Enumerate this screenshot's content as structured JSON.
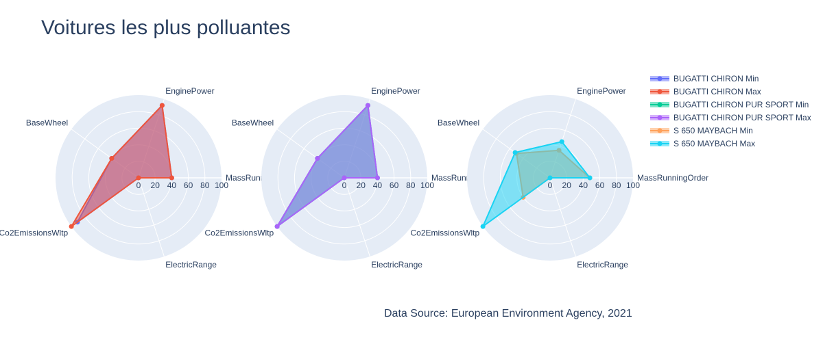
{
  "title": "Voitures les plus polluantes",
  "source_note": "Data Source: European Environment Agency, 2021",
  "chart_data": {
    "type": "radar",
    "axes": [
      "MassRunningOrder",
      "EnginePower",
      "BaseWheel",
      "Co2EmissionsWltp",
      "ElectricRange"
    ],
    "radial_range": [
      0,
      100
    ],
    "radial_ticks": [
      0,
      20,
      40,
      60,
      80,
      100
    ],
    "grid": true,
    "legend_position": "top-right",
    "series": [
      {
        "name": "BUGATTI CHIRON Min",
        "color": "#636efa",
        "panel": 0,
        "values": [
          40,
          92,
          40,
          91,
          0
        ]
      },
      {
        "name": "BUGATTI CHIRON Max",
        "color": "#ef553b",
        "panel": 0,
        "values": [
          40,
          92,
          40,
          100,
          0
        ]
      },
      {
        "name": "BUGATTI CHIRON PUR SPORT Min",
        "color": "#00cc96",
        "panel": 1,
        "values": [
          40,
          92,
          40,
          100,
          0
        ]
      },
      {
        "name": "BUGATTI CHIRON PUR SPORT Max",
        "color": "#ab63fa",
        "panel": 1,
        "values": [
          40,
          92,
          40,
          100,
          0
        ]
      },
      {
        "name": "S 650 MAYBACH Min",
        "color": "#ffa15a",
        "panel": 2,
        "values": [
          48,
          35,
          50,
          40,
          0
        ]
      },
      {
        "name": "S 650 MAYBACH Max",
        "color": "#19d3f3",
        "panel": 2,
        "values": [
          48,
          46,
          52,
          100,
          0
        ]
      }
    ]
  }
}
